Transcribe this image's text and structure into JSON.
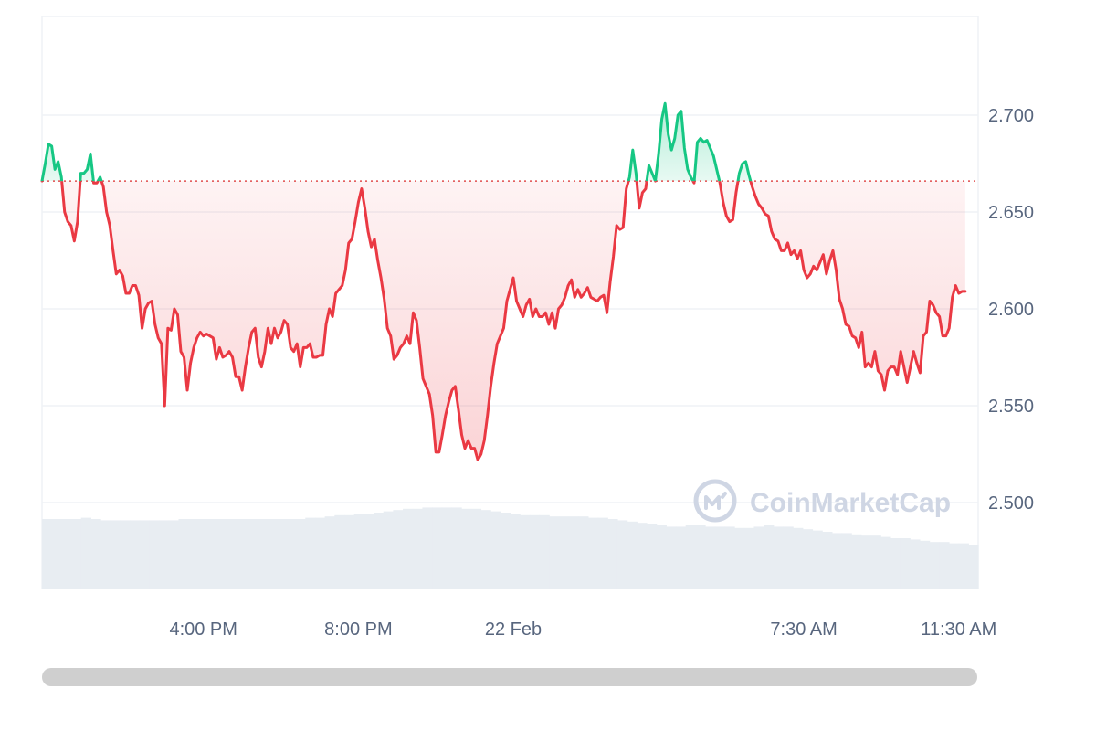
{
  "watermark": {
    "text": "CoinMarketCap",
    "icon": "coinmarketcap-logo-icon"
  },
  "colors": {
    "up": "#16c784",
    "down": "#ea3943",
    "baseline": "#e04d4d",
    "grid": "#eff2f5",
    "volume": "#e8edf2",
    "axis_text": "#58667e"
  },
  "chart_data": {
    "type": "line",
    "title": "",
    "xlabel": "",
    "ylabel": "",
    "baseline": 2.666,
    "ylim": [
      2.457,
      2.745
    ],
    "y_ticks": [
      2.5,
      2.55,
      2.6,
      2.65,
      2.7
    ],
    "y_tick_labels": [
      "2.500",
      "2.550",
      "2.600",
      "2.650",
      "2.700"
    ],
    "x_range": [
      "21 Feb 11:50 AM",
      "22 Feb 12:00 PM"
    ],
    "x_ticks": [
      {
        "t": "21 Feb 4:00 PM",
        "label": "4:00 PM"
      },
      {
        "t": "21 Feb 8:00 PM",
        "label": "8:00 PM"
      },
      {
        "t": "22 Feb 12:00 AM",
        "label": "22 Feb"
      },
      {
        "t": "22 Feb 7:30 AM",
        "label": "7:30 AM"
      },
      {
        "t": "22 Feb 11:30 AM",
        "label": "11:30 AM"
      }
    ],
    "series": [
      {
        "x_start": "21 Feb 11:50 AM",
        "x_step_minutes": 5,
        "values": [
          2.666,
          2.675,
          2.685,
          2.684,
          2.672,
          2.676,
          2.668,
          2.65,
          2.645,
          2.643,
          2.635,
          2.645,
          2.67,
          2.67,
          2.672,
          2.68,
          2.665,
          2.665,
          2.668,
          2.663,
          2.65,
          2.643,
          2.63,
          2.618,
          2.62,
          2.617,
          2.608,
          2.608,
          2.612,
          2.612,
          2.607,
          2.59,
          2.6,
          2.603,
          2.604,
          2.592,
          2.585,
          2.582,
          2.55,
          2.59,
          2.589,
          2.6,
          2.597,
          2.578,
          2.575,
          2.558,
          2.572,
          2.58,
          2.585,
          2.588,
          2.586,
          2.587,
          2.586,
          2.585,
          2.574,
          2.58,
          2.575,
          2.576,
          2.578,
          2.575,
          2.565,
          2.565,
          2.558,
          2.57,
          2.58,
          2.588,
          2.59,
          2.575,
          2.57,
          2.578,
          2.59,
          2.582,
          2.59,
          2.585,
          2.588,
          2.594,
          2.592,
          2.58,
          2.578,
          2.582,
          2.57,
          2.58,
          2.58,
          2.582,
          2.575,
          2.575,
          2.576,
          2.576,
          2.592,
          2.6,
          2.596,
          2.608,
          2.61,
          2.612,
          2.62,
          2.634,
          2.636,
          2.645,
          2.655,
          2.662,
          2.652,
          2.64,
          2.632,
          2.636,
          2.625,
          2.616,
          2.605,
          2.59,
          2.586,
          2.574,
          2.576,
          2.58,
          2.582,
          2.586,
          2.582,
          2.598,
          2.594,
          2.58,
          2.564,
          2.56,
          2.556,
          2.545,
          2.526,
          2.526,
          2.535,
          2.545,
          2.552,
          2.558,
          2.56,
          2.548,
          2.535,
          2.528,
          2.532,
          2.528,
          2.528,
          2.522,
          2.525,
          2.532,
          2.545,
          2.56,
          2.572,
          2.582,
          2.586,
          2.59,
          2.604,
          2.61,
          2.616,
          2.604,
          2.6,
          2.596,
          2.602,
          2.605,
          2.596,
          2.6,
          2.596,
          2.596,
          2.598,
          2.592,
          2.598,
          2.59,
          2.6,
          2.602,
          2.606,
          2.612,
          2.615,
          2.606,
          2.61,
          2.606,
          2.608,
          2.611,
          2.606,
          2.605,
          2.604,
          2.606,
          2.607,
          2.598,
          2.614,
          2.627,
          2.643,
          2.641,
          2.642,
          2.662,
          2.668,
          2.682,
          2.67,
          2.652,
          2.66,
          2.662,
          2.674,
          2.67,
          2.666,
          2.68,
          2.698,
          2.706,
          2.69,
          2.682,
          2.688,
          2.7,
          2.702,
          2.683,
          2.672,
          2.668,
          2.665,
          2.686,
          2.688,
          2.686,
          2.687,
          2.683,
          2.679,
          2.672,
          2.665,
          2.655,
          2.648,
          2.645,
          2.646,
          2.66,
          2.67,
          2.675,
          2.676,
          2.669,
          2.663,
          2.658,
          2.654,
          2.652,
          2.649,
          2.648,
          2.64,
          2.636,
          2.635,
          2.63,
          2.63,
          2.634,
          2.628,
          2.63,
          2.626,
          2.63,
          2.62,
          2.616,
          2.618,
          2.622,
          2.62,
          2.624,
          2.628,
          2.618,
          2.625,
          2.63,
          2.62,
          2.605,
          2.6,
          2.592,
          2.591,
          2.586,
          2.585,
          2.58,
          2.588,
          2.57,
          2.572,
          2.57,
          2.578,
          2.568,
          2.566,
          2.558,
          2.568,
          2.57,
          2.57,
          2.566,
          2.578,
          2.57,
          2.562,
          2.57,
          2.578,
          2.572,
          2.567,
          2.586,
          2.588,
          2.604,
          2.602,
          2.598,
          2.596,
          2.586,
          2.586,
          2.59,
          2.606,
          2.612,
          2.608,
          2.609,
          2.609
        ]
      }
    ],
    "volume": {
      "note": "relative volume level per bar (0-1)",
      "values": [
        0.55,
        0.55,
        0.55,
        0.55,
        0.56,
        0.55,
        0.54,
        0.54,
        0.54,
        0.54,
        0.54,
        0.54,
        0.54,
        0.54,
        0.55,
        0.55,
        0.55,
        0.55,
        0.55,
        0.55,
        0.55,
        0.55,
        0.55,
        0.55,
        0.55,
        0.55,
        0.55,
        0.56,
        0.56,
        0.57,
        0.58,
        0.58,
        0.59,
        0.59,
        0.6,
        0.61,
        0.62,
        0.63,
        0.63,
        0.64,
        0.64,
        0.64,
        0.64,
        0.63,
        0.63,
        0.62,
        0.61,
        0.6,
        0.59,
        0.58,
        0.58,
        0.58,
        0.57,
        0.57,
        0.57,
        0.57,
        0.56,
        0.56,
        0.55,
        0.54,
        0.53,
        0.52,
        0.51,
        0.5,
        0.49,
        0.49,
        0.5,
        0.5,
        0.49,
        0.49,
        0.49,
        0.48,
        0.48,
        0.49,
        0.5,
        0.49,
        0.49,
        0.48,
        0.47,
        0.46,
        0.45,
        0.44,
        0.44,
        0.43,
        0.42,
        0.42,
        0.41,
        0.4,
        0.4,
        0.39,
        0.38,
        0.37,
        0.37,
        0.36,
        0.36,
        0.35
      ]
    }
  }
}
